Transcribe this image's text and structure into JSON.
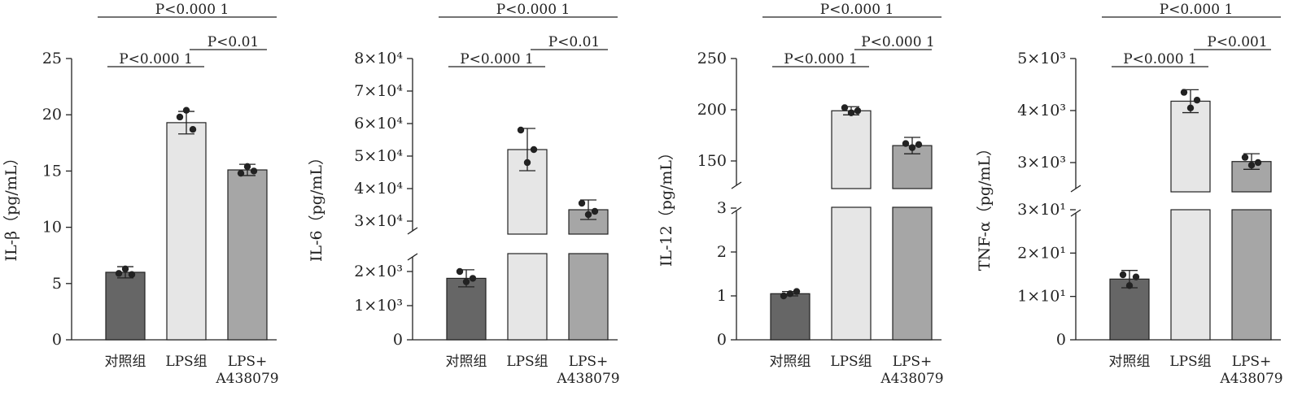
{
  "colors": {
    "control": "#666666",
    "lps": "#e6e6e6",
    "inhibitor": "#a6a6a6",
    "stroke": "#222222"
  },
  "categories": [
    "对照组",
    "LPS组",
    "LPS+\nA438079"
  ],
  "chart_data": [
    {
      "type": "bar",
      "ylabel": "IL-β（pg/mL）",
      "ylim": [
        0,
        25
      ],
      "y_ticks": [
        0,
        5,
        10,
        15,
        20,
        25
      ],
      "y_tick_labels": [
        "0",
        "5",
        "10",
        "15",
        "20",
        "25"
      ],
      "axis_break": null,
      "categories": [
        "对照组",
        "LPS组",
        "LPS+\nA438079"
      ],
      "values": [
        6.0,
        19.3,
        15.1
      ],
      "errors": [
        0.5,
        1.0,
        0.5
      ],
      "points": [
        [
          5.9,
          6.3,
          5.8
        ],
        [
          19.8,
          20.4,
          18.7
        ],
        [
          14.8,
          15.4,
          15.0
        ]
      ],
      "significance": [
        {
          "from": 0,
          "to": 1,
          "label": "P<0.000 1"
        },
        {
          "from": 1,
          "to": 2,
          "label": "P<0.01"
        },
        {
          "from": 0,
          "to": 2,
          "label": "P<0.000 1"
        }
      ]
    },
    {
      "type": "bar",
      "ylabel": "IL-6（pg/mL）",
      "ylim": [
        0,
        80000
      ],
      "y_ticks": [
        0,
        1000,
        2000,
        30000,
        40000,
        50000,
        60000,
        70000,
        80000
      ],
      "y_tick_labels": [
        "0",
        "1×10³",
        "2×10³",
        "3×10⁴",
        "4×10⁴",
        "5×10⁴",
        "6×10⁴",
        "7×10⁴",
        "8×10⁴"
      ],
      "axis_break": [
        2500,
        27000
      ],
      "categories": [
        "对照组",
        "LPS组",
        "LPS+\nA438079"
      ],
      "values": [
        1800,
        52000,
        33500
      ],
      "errors": [
        250,
        6500,
        3000
      ],
      "points": [
        [
          2000,
          1700,
          1800
        ],
        [
          58000,
          48000,
          52000
        ],
        [
          35500,
          32000,
          33000
        ]
      ],
      "significance": [
        {
          "from": 0,
          "to": 1,
          "label": "P<0.000 1"
        },
        {
          "from": 1,
          "to": 2,
          "label": "P<0.01"
        },
        {
          "from": 0,
          "to": 2,
          "label": "P<0.000 1"
        }
      ]
    },
    {
      "type": "bar",
      "ylabel": "IL-12（pg/mL）",
      "ylim": [
        0,
        250
      ],
      "y_ticks": [
        0,
        1,
        2,
        3,
        150,
        200,
        250
      ],
      "y_tick_labels": [
        "0",
        "1",
        "2",
        "3",
        "150",
        "200",
        "250"
      ],
      "axis_break": [
        3,
        130
      ],
      "categories": [
        "对照组",
        "LPS组",
        "LPS+\nA438079"
      ],
      "values": [
        1.05,
        199,
        165
      ],
      "errors": [
        0.05,
        4,
        8
      ],
      "points": [
        [
          1.0,
          1.05,
          1.1
        ],
        [
          202,
          197,
          199
        ],
        [
          167,
          163,
          166
        ]
      ],
      "significance": [
        {
          "from": 0,
          "to": 1,
          "label": "P<0.000 1"
        },
        {
          "from": 1,
          "to": 2,
          "label": "P<0.000 1"
        },
        {
          "from": 0,
          "to": 2,
          "label": "P<0.000 1"
        }
      ]
    },
    {
      "type": "bar",
      "ylabel": "TNF-α（pg/mL）",
      "ylim": [
        0,
        5000
      ],
      "y_ticks": [
        0,
        10,
        20,
        30,
        3000,
        4000,
        5000
      ],
      "y_tick_labels": [
        "0",
        "1×10¹",
        "2×10¹",
        "3×10¹",
        "3×10³",
        "4×10³",
        "5×10³"
      ],
      "axis_break": [
        30,
        2500
      ],
      "categories": [
        "对照组",
        "LPS组",
        "LPS+\nA438079"
      ],
      "values": [
        14,
        4180,
        3020
      ],
      "errors": [
        2,
        220,
        150
      ],
      "points": [
        [
          15,
          12.5,
          14.5
        ],
        [
          4350,
          4050,
          4200
        ],
        [
          3100,
          2950,
          3000
        ]
      ],
      "significance": [
        {
          "from": 0,
          "to": 1,
          "label": "P<0.000 1"
        },
        {
          "from": 1,
          "to": 2,
          "label": "P<0.001"
        },
        {
          "from": 0,
          "to": 2,
          "label": "P<0.000 1"
        }
      ]
    }
  ]
}
